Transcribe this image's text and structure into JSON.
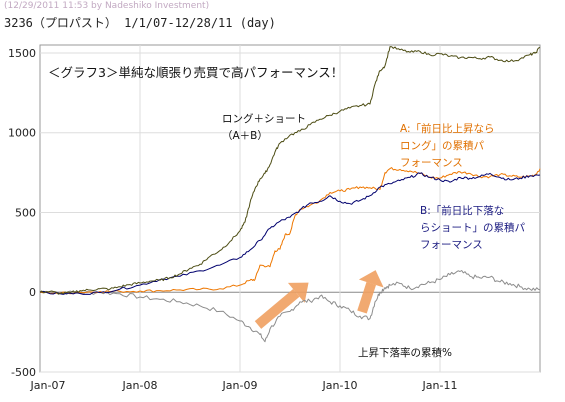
{
  "watermark": "(12/29/2011 11:53 by Nadeshiko Investment)",
  "header": "3236（プロパスト） 1/1/07-12/28/11 (day)",
  "chart_data": {
    "type": "line",
    "title": "＜グラフ3＞単純な順張り売買で高パフォーマンス！",
    "ylim": [
      -500,
      1550
    ],
    "y_ticks": [
      -500,
      0,
      500,
      1000,
      1500
    ],
    "x_ticks": [
      "Jan-07",
      "Jan-08",
      "Jan-09",
      "Jan-10",
      "Jan-11"
    ],
    "grid": true,
    "annotations": [
      {
        "text": "ロング＋ショート\n（A＋B）",
        "color": "#111111"
      },
      {
        "text": "A:「前日比上昇なら\nロング」の累積パ\nフォーマンス",
        "color": "#e07000"
      },
      {
        "text": "B:「前日比下落な\nらショート」の累積パ\nフォーマンス",
        "color": "#1a1a80"
      },
      {
        "text": "上昇下落率の累積%",
        "color": "#111111"
      }
    ],
    "series": [
      {
        "name": "ロング＋ショート（A＋B）",
        "color": "#4d4d14",
        "points": [
          [
            2007.0,
            0
          ],
          [
            2007.1,
            5
          ],
          [
            2007.2,
            -8
          ],
          [
            2007.3,
            -3
          ],
          [
            2007.4,
            10
          ],
          [
            2007.5,
            14
          ],
          [
            2007.6,
            22
          ],
          [
            2007.7,
            20
          ],
          [
            2007.8,
            35
          ],
          [
            2007.9,
            48
          ],
          [
            2008.0,
            58
          ],
          [
            2008.1,
            70
          ],
          [
            2008.2,
            75
          ],
          [
            2008.3,
            92
          ],
          [
            2008.4,
            115
          ],
          [
            2008.5,
            150
          ],
          [
            2008.6,
            175
          ],
          [
            2008.7,
            225
          ],
          [
            2008.8,
            262
          ],
          [
            2008.9,
            318
          ],
          [
            2009.0,
            385
          ],
          [
            2009.05,
            440
          ],
          [
            2009.1,
            560
          ],
          [
            2009.15,
            650
          ],
          [
            2009.2,
            710
          ],
          [
            2009.25,
            745
          ],
          [
            2009.3,
            800
          ],
          [
            2009.35,
            880
          ],
          [
            2009.4,
            935
          ],
          [
            2009.5,
            985
          ],
          [
            2009.6,
            1010
          ],
          [
            2009.7,
            1050
          ],
          [
            2009.8,
            1085
          ],
          [
            2009.9,
            1110
          ],
          [
            2010.0,
            1135
          ],
          [
            2010.1,
            1155
          ],
          [
            2010.2,
            1170
          ],
          [
            2010.3,
            1180
          ],
          [
            2010.35,
            1305
          ],
          [
            2010.4,
            1390
          ],
          [
            2010.45,
            1420
          ],
          [
            2010.5,
            1540
          ],
          [
            2010.6,
            1520
          ],
          [
            2010.7,
            1505
          ],
          [
            2010.8,
            1510
          ],
          [
            2010.9,
            1488
          ],
          [
            2011.0,
            1495
          ],
          [
            2011.1,
            1480
          ],
          [
            2011.2,
            1470
          ],
          [
            2011.3,
            1472
          ],
          [
            2011.4,
            1465
          ],
          [
            2011.5,
            1475
          ],
          [
            2011.6,
            1455
          ],
          [
            2011.7,
            1448
          ],
          [
            2011.8,
            1462
          ],
          [
            2011.9,
            1490
          ],
          [
            2011.95,
            1498
          ],
          [
            2012.0,
            1535
          ]
        ]
      },
      {
        "name": "A:「前日比上昇ならロング」の累積パフォーマンス",
        "color": "#ee7700",
        "points": [
          [
            2007.0,
            0
          ],
          [
            2007.2,
            -6
          ],
          [
            2007.4,
            0
          ],
          [
            2007.6,
            5
          ],
          [
            2007.8,
            5
          ],
          [
            2008.0,
            8
          ],
          [
            2008.2,
            10
          ],
          [
            2008.4,
            15
          ],
          [
            2008.6,
            18
          ],
          [
            2008.8,
            22
          ],
          [
            2009.0,
            45
          ],
          [
            2009.1,
            75
          ],
          [
            2009.15,
            80
          ],
          [
            2009.2,
            170
          ],
          [
            2009.3,
            160
          ],
          [
            2009.35,
            260
          ],
          [
            2009.4,
            270
          ],
          [
            2009.45,
            360
          ],
          [
            2009.5,
            370
          ],
          [
            2009.55,
            480
          ],
          [
            2009.6,
            520
          ],
          [
            2009.7,
            545
          ],
          [
            2009.8,
            575
          ],
          [
            2009.9,
            625
          ],
          [
            2010.0,
            635
          ],
          [
            2010.1,
            645
          ],
          [
            2010.2,
            660
          ],
          [
            2010.3,
            655
          ],
          [
            2010.4,
            645
          ],
          [
            2010.45,
            750
          ],
          [
            2010.5,
            775
          ],
          [
            2010.6,
            770
          ],
          [
            2010.7,
            760
          ],
          [
            2010.8,
            745
          ],
          [
            2010.9,
            720
          ],
          [
            2011.0,
            715
          ],
          [
            2011.1,
            740
          ],
          [
            2011.2,
            755
          ],
          [
            2011.3,
            745
          ],
          [
            2011.4,
            725
          ],
          [
            2011.5,
            725
          ],
          [
            2011.6,
            738
          ],
          [
            2011.7,
            730
          ],
          [
            2011.8,
            722
          ],
          [
            2011.9,
            728
          ],
          [
            2011.95,
            735
          ],
          [
            2012.0,
            775
          ]
        ]
      },
      {
        "name": "B:「前日比下落ならショート」の累積パフォーマンス",
        "color": "#00006e",
        "points": [
          [
            2007.0,
            0
          ],
          [
            2007.2,
            -10
          ],
          [
            2007.4,
            -8
          ],
          [
            2007.6,
            -3
          ],
          [
            2007.8,
            20
          ],
          [
            2008.0,
            45
          ],
          [
            2008.2,
            80
          ],
          [
            2008.4,
            100
          ],
          [
            2008.6,
            135
          ],
          [
            2008.8,
            170
          ],
          [
            2009.0,
            218
          ],
          [
            2009.1,
            265
          ],
          [
            2009.2,
            325
          ],
          [
            2009.3,
            400
          ],
          [
            2009.4,
            445
          ],
          [
            2009.5,
            470
          ],
          [
            2009.6,
            515
          ],
          [
            2009.7,
            560
          ],
          [
            2009.8,
            570
          ],
          [
            2009.9,
            605
          ],
          [
            2010.0,
            570
          ],
          [
            2010.1,
            555
          ],
          [
            2010.2,
            575
          ],
          [
            2010.3,
            605
          ],
          [
            2010.4,
            660
          ],
          [
            2010.5,
            680
          ],
          [
            2010.6,
            700
          ],
          [
            2010.7,
            720
          ],
          [
            2010.8,
            745
          ],
          [
            2010.9,
            720
          ],
          [
            2011.0,
            705
          ],
          [
            2011.1,
            690
          ],
          [
            2011.2,
            720
          ],
          [
            2011.3,
            715
          ],
          [
            2011.4,
            725
          ],
          [
            2011.5,
            745
          ],
          [
            2011.6,
            720
          ],
          [
            2011.7,
            705
          ],
          [
            2011.8,
            715
          ],
          [
            2011.9,
            730
          ],
          [
            2012.0,
            735
          ]
        ]
      },
      {
        "name": "上昇下落率の累積%",
        "color": "#8c8c8c",
        "points": [
          [
            2007.0,
            5
          ],
          [
            2007.2,
            0
          ],
          [
            2007.4,
            -5
          ],
          [
            2007.6,
            0
          ],
          [
            2007.8,
            -10
          ],
          [
            2008.0,
            -30
          ],
          [
            2008.2,
            -45
          ],
          [
            2008.4,
            -60
          ],
          [
            2008.6,
            -85
          ],
          [
            2008.8,
            -120
          ],
          [
            2009.0,
            -180
          ],
          [
            2009.1,
            -220
          ],
          [
            2009.2,
            -265
          ],
          [
            2009.25,
            -310
          ],
          [
            2009.3,
            -230
          ],
          [
            2009.4,
            -150
          ],
          [
            2009.5,
            -120
          ],
          [
            2009.6,
            -60
          ],
          [
            2009.7,
            -55
          ],
          [
            2009.8,
            -25
          ],
          [
            2009.9,
            -60
          ],
          [
            2010.0,
            -85
          ],
          [
            2010.1,
            -115
          ],
          [
            2010.2,
            -150
          ],
          [
            2010.3,
            -165
          ],
          [
            2010.35,
            -60
          ],
          [
            2010.4,
            0
          ],
          [
            2010.45,
            30
          ],
          [
            2010.5,
            45
          ],
          [
            2010.6,
            55
          ],
          [
            2010.7,
            25
          ],
          [
            2010.8,
            45
          ],
          [
            2010.9,
            60
          ],
          [
            2011.0,
            80
          ],
          [
            2011.1,
            110
          ],
          [
            2011.2,
            130
          ],
          [
            2011.3,
            100
          ],
          [
            2011.4,
            90
          ],
          [
            2011.5,
            95
          ],
          [
            2011.6,
            65
          ],
          [
            2011.7,
            55
          ],
          [
            2011.8,
            35
          ],
          [
            2011.9,
            20
          ],
          [
            2012.0,
            15
          ]
        ]
      }
    ]
  }
}
